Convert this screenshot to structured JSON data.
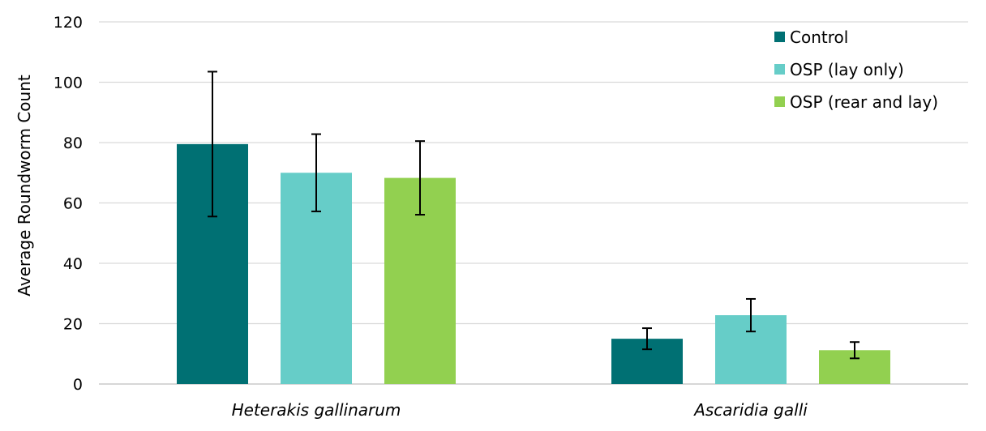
{
  "chart_data": {
    "type": "bar",
    "categories": [
      "Heterakis gallinarum",
      "Ascaridia galli"
    ],
    "series": [
      {
        "name": "Control",
        "color": "#007073",
        "values": [
          79.5,
          15
        ],
        "errors": [
          24,
          3.5
        ]
      },
      {
        "name": "OSP (lay only)",
        "color": "#66cdc8",
        "values": [
          70,
          22.8
        ],
        "errors": [
          12.8,
          5.4
        ]
      },
      {
        "name": "OSP (rear and lay)",
        "color": "#92d050",
        "values": [
          68.3,
          11.2
        ],
        "errors": [
          12.2,
          2.7
        ]
      }
    ],
    "ylabel": "Average Roundworm Count",
    "xlabel": "",
    "ylim": [
      0,
      120
    ],
    "yticks": [
      0,
      20,
      40,
      60,
      80,
      100,
      120
    ],
    "grid": true,
    "legend": "top-right"
  }
}
